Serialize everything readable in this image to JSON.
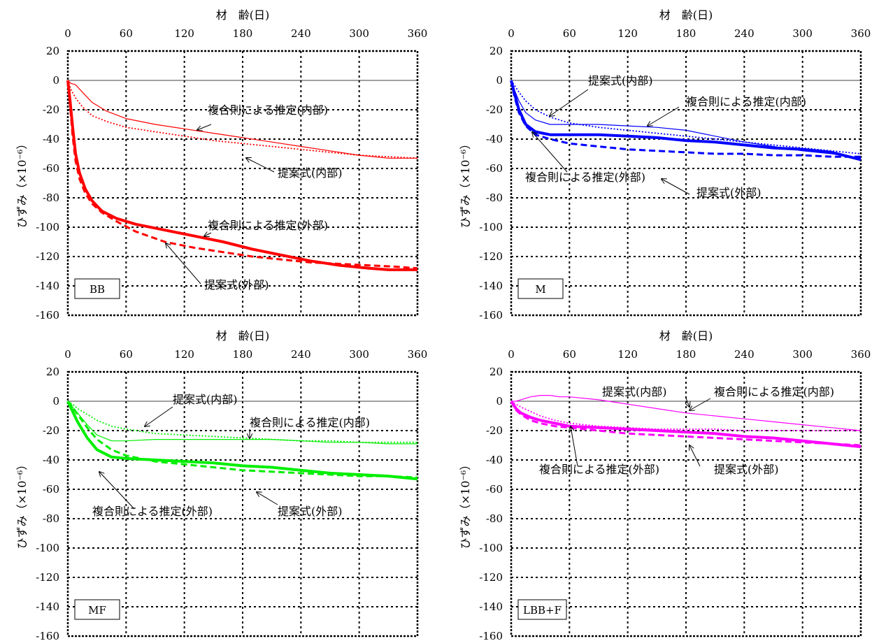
{
  "chart_data": [
    {
      "type": "line",
      "tag": "BB",
      "xlabel": "材　齢(日)",
      "ylabel": "ひずみ（×10⁻⁶）",
      "xlim": [
        0,
        360
      ],
      "ylim": [
        -160,
        20
      ],
      "xticks": [
        0,
        60,
        120,
        180,
        240,
        300,
        360
      ],
      "yticks": [
        20,
        0,
        -20,
        -40,
        -60,
        -80,
        -100,
        -120,
        -140,
        -160
      ],
      "xaxis_position": "top",
      "grid": true,
      "color": "#ff0000",
      "series": [
        {
          "role": "measured-inner",
          "style": "thin",
          "x": [
            0,
            3,
            8,
            15,
            25,
            40,
            60,
            90,
            120,
            150,
            180,
            210,
            240,
            270,
            300,
            330,
            360
          ],
          "y": [
            0,
            -2,
            -3,
            -8,
            -15,
            -21,
            -26,
            -30,
            -33,
            -36,
            -39,
            -42,
            -45,
            -48,
            -51,
            -53,
            -53
          ]
        },
        {
          "role": "proposed-inner",
          "style": "dotted",
          "x": [
            0,
            3,
            8,
            15,
            25,
            40,
            60,
            90,
            120,
            150,
            180,
            210,
            240,
            270,
            300,
            330,
            360
          ],
          "y": [
            0,
            -6,
            -12,
            -18,
            -24,
            -28,
            -32,
            -35,
            -38,
            -41,
            -43,
            -45,
            -47,
            -49,
            -51,
            -52,
            -53
          ]
        },
        {
          "role": "measured-outer",
          "style": "thick",
          "x": [
            0,
            2,
            5,
            8,
            12,
            18,
            25,
            35,
            50,
            70,
            100,
            130,
            160,
            190,
            220,
            250,
            280,
            310,
            330,
            360
          ],
          "y": [
            0,
            -12,
            -32,
            -50,
            -63,
            -74,
            -82,
            -89,
            -94,
            -98,
            -102,
            -106,
            -110,
            -115,
            -119,
            -123,
            -126,
            -128,
            -129,
            -129
          ]
        },
        {
          "role": "proposed-outer",
          "style": "dashed",
          "x": [
            0,
            2,
            5,
            8,
            12,
            18,
            25,
            35,
            50,
            70,
            100,
            130,
            160,
            190,
            220,
            250,
            280,
            310,
            340,
            360
          ],
          "y": [
            0,
            -15,
            -38,
            -55,
            -67,
            -77,
            -84,
            -90,
            -96,
            -103,
            -110,
            -114,
            -117,
            -120,
            -122,
            -124,
            -125,
            -126,
            -127,
            -128
          ]
        }
      ],
      "annotations": [
        "複合則による推定(内部)",
        "提案式(内部)",
        "複合則による推定(外部)",
        "提案式(外部)"
      ]
    },
    {
      "type": "line",
      "tag": "M",
      "xlabel": "材　齢(日)",
      "ylabel": "ひずみ（×10⁻⁶）",
      "xlim": [
        0,
        360
      ],
      "ylim": [
        -160,
        20
      ],
      "xticks": [
        0,
        60,
        120,
        180,
        240,
        300,
        360
      ],
      "yticks": [
        20,
        0,
        -20,
        -40,
        -60,
        -80,
        -100,
        -120,
        -140,
        -160
      ],
      "xaxis_position": "top",
      "grid": true,
      "color": "#0000ff",
      "series": [
        {
          "role": "measured-inner",
          "style": "thin",
          "x": [
            0,
            3,
            8,
            15,
            25,
            40,
            60,
            90,
            120,
            150,
            180,
            210,
            240,
            270,
            300,
            330,
            360
          ],
          "y": [
            0,
            -6,
            -14,
            -22,
            -27,
            -30,
            -30,
            -30,
            -31,
            -32,
            -34,
            -38,
            -42,
            -45,
            -48,
            -50,
            -53
          ]
        },
        {
          "role": "proposed-inner",
          "style": "dotted",
          "x": [
            0,
            3,
            8,
            15,
            25,
            40,
            60,
            90,
            120,
            150,
            180,
            210,
            240,
            270,
            300,
            330,
            360
          ],
          "y": [
            0,
            -3,
            -8,
            -14,
            -20,
            -25,
            -29,
            -32,
            -34,
            -36,
            -38,
            -40,
            -42,
            -44,
            -46,
            -48,
            -50
          ]
        },
        {
          "role": "measured-outer",
          "style": "thick",
          "x": [
            0,
            3,
            8,
            15,
            25,
            40,
            60,
            90,
            120,
            150,
            180,
            210,
            240,
            270,
            300,
            330,
            360
          ],
          "y": [
            0,
            -8,
            -20,
            -30,
            -35,
            -37,
            -37,
            -37,
            -38,
            -39,
            -41,
            -42,
            -44,
            -46,
            -47,
            -49,
            -54
          ]
        },
        {
          "role": "proposed-outer",
          "style": "dashed",
          "x": [
            0,
            3,
            8,
            15,
            25,
            40,
            60,
            90,
            120,
            150,
            180,
            210,
            240,
            270,
            300,
            330,
            360
          ],
          "y": [
            0,
            -10,
            -22,
            -31,
            -37,
            -40,
            -43,
            -45,
            -47,
            -48,
            -49,
            -50,
            -50,
            -51,
            -51,
            -52,
            -52
          ]
        }
      ],
      "annotations": [
        "提案式(内部)",
        "複合則による推定(内部)",
        "複合則による推定(外部)",
        "提案式(外部)"
      ]
    },
    {
      "type": "line",
      "tag": "MF",
      "xlabel": "材　齢(日)",
      "ylabel": "ひずみ（×10⁻⁶）",
      "xlim": [
        0,
        360
      ],
      "ylim": [
        -160,
        20
      ],
      "xticks": [
        0,
        60,
        120,
        180,
        240,
        300,
        360
      ],
      "yticks": [
        20,
        0,
        -20,
        -40,
        -60,
        -80,
        -100,
        -120,
        -140,
        -160
      ],
      "xaxis_position": "top",
      "grid": true,
      "color": "#00ee00",
      "series": [
        {
          "role": "measured-inner",
          "style": "thin",
          "x": [
            0,
            5,
            10,
            20,
            30,
            45,
            60,
            90,
            120,
            150,
            180,
            210,
            240,
            270,
            300,
            330,
            360
          ],
          "y": [
            0,
            -4,
            -8,
            -16,
            -23,
            -27,
            -27,
            -26,
            -26,
            -26,
            -26,
            -26,
            -27,
            -28,
            -28,
            -29,
            -29
          ]
        },
        {
          "role": "proposed-inner",
          "style": "dotted",
          "x": [
            0,
            5,
            10,
            20,
            30,
            45,
            60,
            90,
            120,
            150,
            180,
            210,
            240,
            270,
            300,
            330,
            360
          ],
          "y": [
            0,
            -2,
            -5,
            -9,
            -13,
            -17,
            -19,
            -22,
            -23,
            -24,
            -25,
            -26,
            -27,
            -27,
            -28,
            -28,
            -28
          ]
        },
        {
          "role": "measured-outer",
          "style": "thick",
          "x": [
            0,
            5,
            10,
            20,
            30,
            45,
            60,
            90,
            120,
            150,
            180,
            210,
            240,
            270,
            300,
            330,
            360
          ],
          "y": [
            0,
            -7,
            -14,
            -25,
            -33,
            -38,
            -39,
            -40,
            -41,
            -42,
            -44,
            -45,
            -47,
            -49,
            -50,
            -51,
            -53
          ]
        },
        {
          "role": "proposed-outer",
          "style": "dashed",
          "x": [
            0,
            5,
            10,
            20,
            30,
            45,
            60,
            90,
            120,
            150,
            180,
            210,
            240,
            270,
            300,
            330,
            360
          ],
          "y": [
            0,
            -4,
            -9,
            -18,
            -26,
            -33,
            -37,
            -41,
            -43,
            -45,
            -47,
            -48,
            -49,
            -50,
            -51,
            -51,
            -52
          ]
        }
      ],
      "annotations": [
        "提案式(内部)",
        "複合則による推定(内部)",
        "複合則による推定(外部)",
        "提案式(外部)"
      ]
    },
    {
      "type": "line",
      "tag": "LBB+F",
      "xlabel": "材　齢(日)",
      "ylabel": "ひずみ（×10⁻⁶）",
      "xlim": [
        0,
        360
      ],
      "ylim": [
        -160,
        20
      ],
      "xticks": [
        0,
        60,
        120,
        180,
        240,
        300,
        360
      ],
      "yticks": [
        20,
        0,
        -20,
        -40,
        -60,
        -80,
        -100,
        -120,
        -140,
        -160
      ],
      "xaxis_position": "top",
      "grid": true,
      "color": "#ff00ff",
      "series": [
        {
          "role": "measured-inner",
          "style": "thin",
          "x": [
            0,
            5,
            10,
            20,
            30,
            40,
            50,
            60,
            90,
            120,
            150,
            180,
            210,
            240,
            270,
            300,
            330,
            360
          ],
          "y": [
            0,
            0,
            1,
            3,
            4,
            4,
            3,
            3,
            1,
            -2,
            -5,
            -8,
            -10,
            -12,
            -14,
            -16,
            -18,
            -20
          ]
        },
        {
          "role": "proposed-inner",
          "style": "dotted",
          "x": [
            0,
            5,
            10,
            20,
            30,
            45,
            60,
            90,
            120,
            150,
            180,
            210,
            240,
            270,
            300,
            330,
            360
          ],
          "y": [
            0,
            -2,
            -4,
            -7,
            -10,
            -13,
            -15,
            -17,
            -18,
            -19,
            -19,
            -19,
            -20,
            -20,
            -20,
            -20,
            -20
          ]
        },
        {
          "role": "measured-outer",
          "style": "thick",
          "x": [
            0,
            5,
            10,
            20,
            30,
            45,
            60,
            90,
            120,
            150,
            180,
            210,
            240,
            270,
            300,
            330,
            360
          ],
          "y": [
            0,
            -5,
            -8,
            -11,
            -13,
            -15,
            -17,
            -18,
            -19,
            -20,
            -21,
            -22,
            -24,
            -25,
            -27,
            -29,
            -31
          ]
        },
        {
          "role": "proposed-outer",
          "style": "dashed",
          "x": [
            0,
            5,
            10,
            20,
            30,
            45,
            60,
            90,
            120,
            150,
            180,
            210,
            240,
            270,
            300,
            330,
            360
          ],
          "y": [
            0,
            -6,
            -9,
            -13,
            -15,
            -17,
            -18,
            -20,
            -22,
            -23,
            -24,
            -25,
            -26,
            -27,
            -28,
            -29,
            -30
          ]
        }
      ],
      "annotations": [
        "提案式(内部)",
        "複合則による推定(内部)",
        "複合則による推定(外部)",
        "提案式(外部)"
      ]
    }
  ]
}
